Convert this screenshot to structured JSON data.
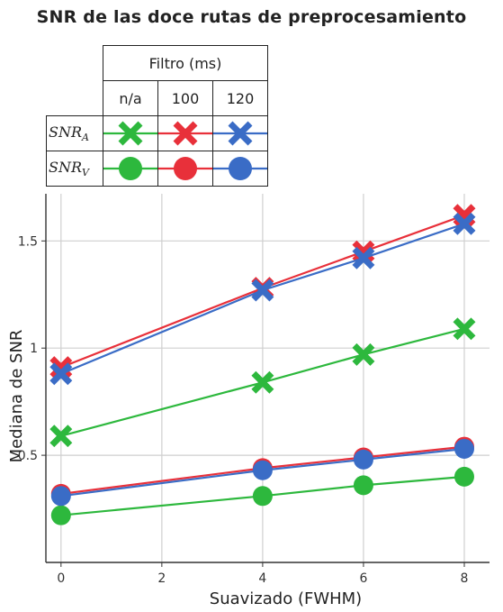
{
  "chart_data": {
    "type": "line",
    "title": "SNR de las doce rutas de preprocesamiento",
    "xlabel": "Suavizado (FWHM)",
    "ylabel": "Mediana de SNR",
    "xlim": [
      -0.3,
      8.5
    ],
    "ylim": [
      0.0,
      1.72
    ],
    "xticks": [
      0,
      2,
      4,
      6,
      8
    ],
    "xtick_labels": [
      "0",
      "2",
      "4",
      "6",
      "8"
    ],
    "yticks": [
      0.5,
      1.0,
      1.5
    ],
    "ytick_labels": [
      "0.5",
      "1",
      "1.5"
    ],
    "grid": true,
    "legend": {
      "group_header": "Filtro (ms)",
      "columns": [
        "n/a",
        "100",
        "120"
      ],
      "rows": [
        {
          "label": "SNR",
          "sub": "A",
          "marker": "x"
        },
        {
          "label": "SNR",
          "sub": "V",
          "marker": "circle"
        }
      ]
    },
    "colors": {
      "n/a": "#2db83d",
      "100": "#e8303a",
      "120": "#3a6cc6"
    },
    "x": [
      0,
      4,
      6,
      8
    ],
    "series": [
      {
        "filter": "n/a",
        "metric": "A",
        "marker": "x",
        "color": "#2db83d",
        "values": [
          0.59,
          0.84,
          0.97,
          1.09
        ]
      },
      {
        "filter": "100",
        "metric": "A",
        "marker": "x",
        "color": "#e8303a",
        "values": [
          0.91,
          1.28,
          1.45,
          1.62
        ]
      },
      {
        "filter": "120",
        "metric": "A",
        "marker": "x",
        "color": "#3a6cc6",
        "values": [
          0.88,
          1.27,
          1.42,
          1.58
        ]
      },
      {
        "filter": "n/a",
        "metric": "V",
        "marker": "circle",
        "color": "#2db83d",
        "values": [
          0.22,
          0.31,
          0.36,
          0.4
        ]
      },
      {
        "filter": "100",
        "metric": "V",
        "marker": "circle",
        "color": "#e8303a",
        "values": [
          0.32,
          0.44,
          0.49,
          0.54
        ]
      },
      {
        "filter": "120",
        "metric": "V",
        "marker": "circle",
        "color": "#3a6cc6",
        "values": [
          0.31,
          0.43,
          0.48,
          0.53
        ]
      }
    ]
  }
}
